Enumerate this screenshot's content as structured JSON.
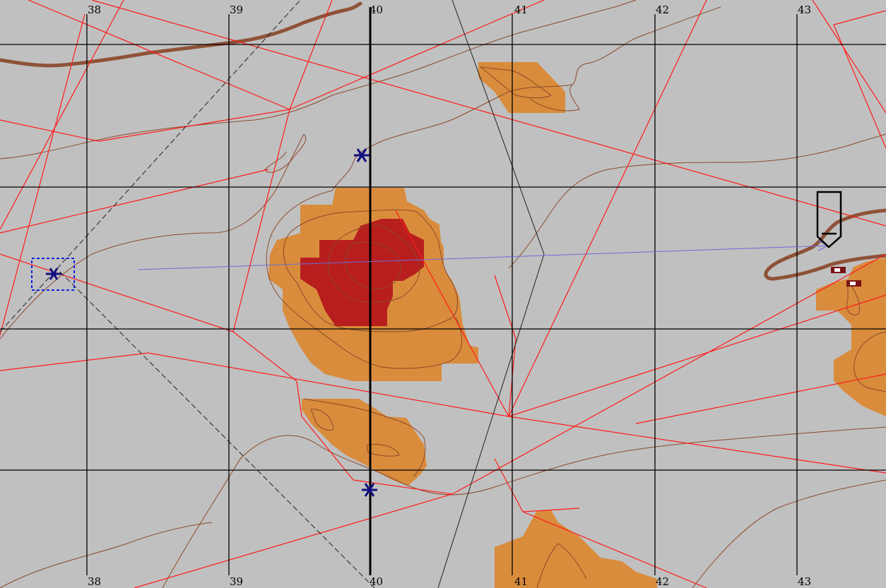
{
  "map": {
    "background_color": "#c0c0c0",
    "grid_easting_labels": [
      "38",
      "39",
      "40",
      "41",
      "42",
      "43"
    ],
    "colors": {
      "grid": "#000000",
      "roads": "#ff1a1a",
      "contours": "#8a4a2a",
      "main_road": "#8f5238",
      "terrain_mid": "#d98c3c",
      "terrain_high": "#b81e1e",
      "units": "#101080",
      "movement_vector": "#6b6bd8",
      "selection_box": "#1020e0"
    },
    "icons": {
      "unit_marker": "star-burst-icon",
      "selected_unit": "selected-unit-icon",
      "waypoint": "waypoint-flag-icon",
      "building": "building-icon"
    }
  }
}
